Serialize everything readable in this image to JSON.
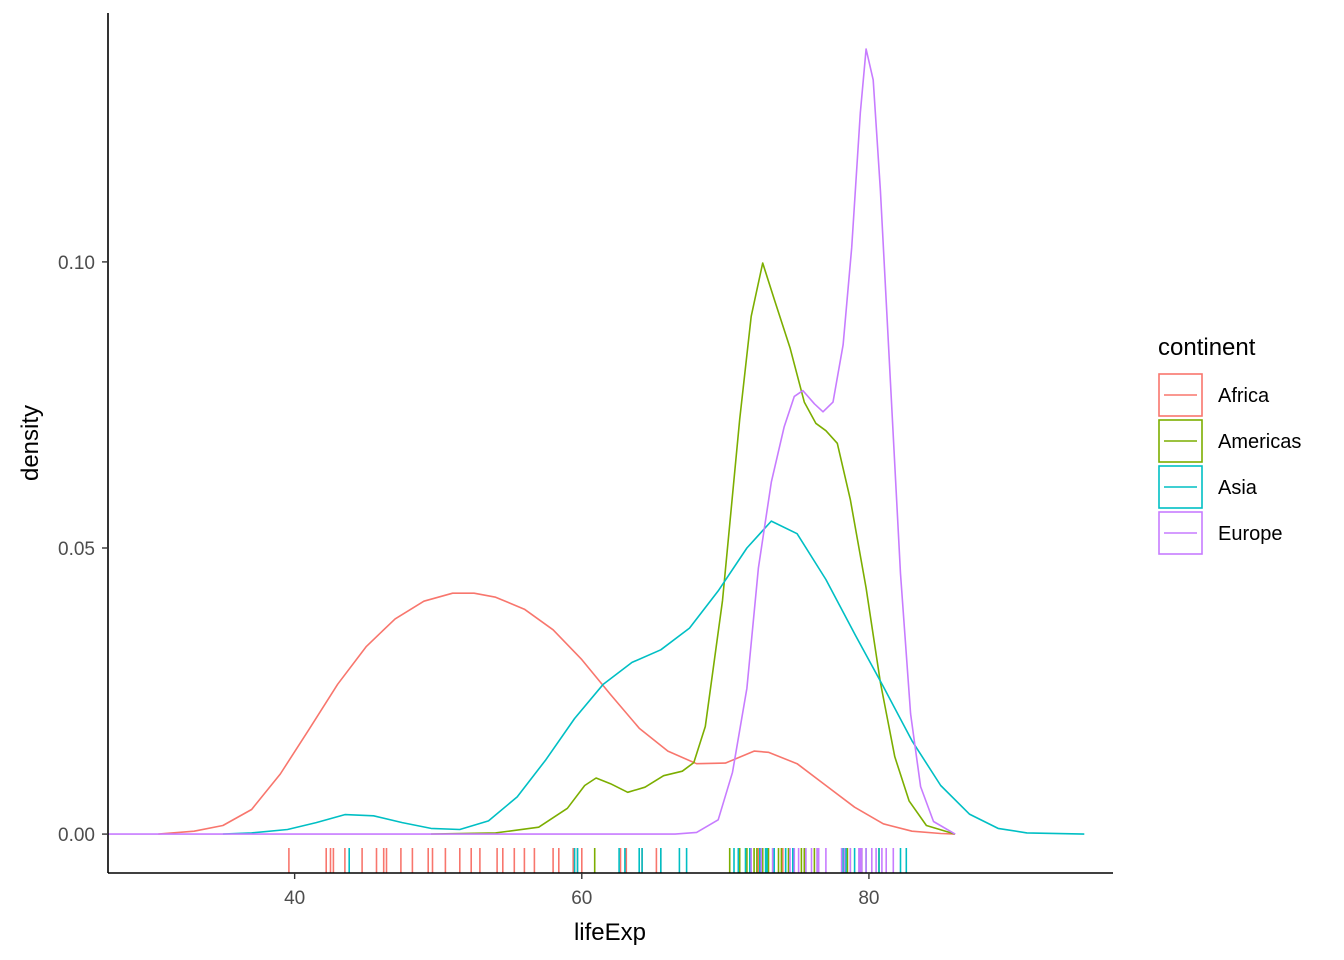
{
  "chart_data": {
    "type": "line",
    "subtype": "density with rug",
    "title": "",
    "xlabel": "lifeExp",
    "ylabel": "density",
    "xlim": [
      27,
      97
    ],
    "ylim": [
      -0.0068,
      0.1435
    ],
    "x_ticks": [
      40,
      60,
      80
    ],
    "y_ticks": [
      0.0,
      0.05,
      0.1
    ],
    "y_tick_labels": [
      "0.00",
      "0.05",
      "0.10"
    ],
    "grid": false,
    "legend": {
      "title": "continent",
      "position": "right"
    },
    "series": [
      {
        "name": "Africa",
        "color": "#F8766D",
        "points": [
          [
            30.5,
            0
          ],
          [
            33,
            0.0005
          ],
          [
            35,
            0.0015
          ],
          [
            37,
            0.0043
          ],
          [
            39,
            0.0105
          ],
          [
            41,
            0.0183
          ],
          [
            43,
            0.0262
          ],
          [
            45,
            0.0328
          ],
          [
            47,
            0.0376
          ],
          [
            49,
            0.0407
          ],
          [
            51,
            0.0421
          ],
          [
            52.5,
            0.0421
          ],
          [
            54,
            0.0414
          ],
          [
            56,
            0.0393
          ],
          [
            58,
            0.0357
          ],
          [
            60,
            0.0305
          ],
          [
            62,
            0.0244
          ],
          [
            64,
            0.0185
          ],
          [
            66,
            0.0145
          ],
          [
            68,
            0.0123
          ],
          [
            70,
            0.0124
          ],
          [
            72,
            0.0145
          ],
          [
            73,
            0.0143
          ],
          [
            75,
            0.0123
          ],
          [
            77,
            0.0085
          ],
          [
            79,
            0.0047
          ],
          [
            81,
            0.0018
          ],
          [
            83,
            0.0005
          ],
          [
            85,
            0.0001
          ],
          [
            86,
            0
          ]
        ],
        "rug": [
          39.6,
          42.2,
          42.5,
          42.7,
          43.5,
          44.7,
          45.7,
          46.2,
          46.4,
          47.4,
          48.2,
          49.3,
          49.6,
          50.5,
          51.5,
          52.3,
          52.9,
          54.1,
          54.5,
          55.3,
          56.0,
          56.7,
          58.0,
          58.4,
          59.4,
          59.7,
          60.0,
          62.7,
          63.1,
          64.2,
          65.2,
          65.5,
          72.3,
          73.0,
          74.0,
          76.4
        ]
      },
      {
        "name": "Americas",
        "color": "#7CAE00",
        "points": [
          [
            49.5,
            0
          ],
          [
            54,
            0.0002
          ],
          [
            57,
            0.0012
          ],
          [
            59,
            0.0045
          ],
          [
            60.2,
            0.0085
          ],
          [
            61,
            0.0098
          ],
          [
            62,
            0.0088
          ],
          [
            63.2,
            0.0073
          ],
          [
            64.4,
            0.0082
          ],
          [
            65.7,
            0.0102
          ],
          [
            67,
            0.011
          ],
          [
            67.8,
            0.0125
          ],
          [
            68.6,
            0.0188
          ],
          [
            69.8,
            0.0408
          ],
          [
            71,
            0.0725
          ],
          [
            71.8,
            0.0905
          ],
          [
            72.6,
            0.0998
          ],
          [
            73.4,
            0.0935
          ],
          [
            74.5,
            0.085
          ],
          [
            75.5,
            0.0755
          ],
          [
            76.3,
            0.0718
          ],
          [
            77,
            0.0705
          ],
          [
            77.8,
            0.0683
          ],
          [
            78.7,
            0.0585
          ],
          [
            79.8,
            0.043
          ],
          [
            80.8,
            0.0265
          ],
          [
            81.8,
            0.0135
          ],
          [
            82.8,
            0.0058
          ],
          [
            84,
            0.0015
          ],
          [
            86,
            0
          ]
        ],
        "rug": [
          60.9,
          70.3,
          71.0,
          71.5,
          71.8,
          72.0,
          72.2,
          72.4,
          72.6,
          72.9,
          73.0,
          73.3,
          73.7,
          73.9,
          74.4,
          74.7,
          75.3,
          75.5,
          76.2,
          76.5,
          78.3,
          78.5,
          78.7,
          79.5,
          80.7
        ]
      },
      {
        "name": "Asia",
        "color": "#00BFC4",
        "points": [
          [
            35,
            0
          ],
          [
            37,
            0.0002
          ],
          [
            39.5,
            0.0008
          ],
          [
            41.5,
            0.002
          ],
          [
            43.5,
            0.0034
          ],
          [
            45.5,
            0.0032
          ],
          [
            47.5,
            0.002
          ],
          [
            49.5,
            0.001
          ],
          [
            51.5,
            0.0008
          ],
          [
            53.5,
            0.0023
          ],
          [
            55.5,
            0.0065
          ],
          [
            57.5,
            0.013
          ],
          [
            59.5,
            0.0202
          ],
          [
            61.5,
            0.0262
          ],
          [
            63.5,
            0.03
          ],
          [
            65.5,
            0.0322
          ],
          [
            67.5,
            0.036
          ],
          [
            69.5,
            0.0425
          ],
          [
            71.5,
            0.05
          ],
          [
            73.2,
            0.0547
          ],
          [
            75,
            0.0525
          ],
          [
            77,
            0.0445
          ],
          [
            79,
            0.035
          ],
          [
            81,
            0.0258
          ],
          [
            83,
            0.0163
          ],
          [
            85,
            0.0085
          ],
          [
            87,
            0.0035
          ],
          [
            89,
            0.001
          ],
          [
            91,
            0.0002
          ],
          [
            95,
            0
          ]
        ],
        "rug": [
          43.8,
          59.5,
          59.7,
          62.6,
          63.0,
          64.0,
          64.2,
          65.5,
          66.8,
          67.3,
          70.6,
          70.9,
          71.4,
          71.7,
          72.4,
          72.8,
          72.9,
          73.4,
          74.2,
          74.2,
          74.7,
          75.6,
          76.4,
          78.2,
          78.4,
          79.0,
          79.4,
          79.8,
          80.7,
          82.2,
          82.6
        ]
      },
      {
        "name": "Europe",
        "color": "#C77CFF",
        "points": [
          [
            27,
            0
          ],
          [
            66.5,
            0
          ],
          [
            68,
            0.0003
          ],
          [
            69.5,
            0.0025
          ],
          [
            70.5,
            0.0108
          ],
          [
            71.5,
            0.0255
          ],
          [
            72.3,
            0.0465
          ],
          [
            73.2,
            0.0615
          ],
          [
            74.1,
            0.0712
          ],
          [
            74.8,
            0.0765
          ],
          [
            75.4,
            0.0775
          ],
          [
            76.2,
            0.0752
          ],
          [
            76.8,
            0.0738
          ],
          [
            77.5,
            0.0755
          ],
          [
            78.2,
            0.0855
          ],
          [
            78.8,
            0.1025
          ],
          [
            79.4,
            0.126
          ],
          [
            79.8,
            0.1372
          ],
          [
            80.3,
            0.1318
          ],
          [
            80.8,
            0.1125
          ],
          [
            81.5,
            0.0788
          ],
          [
            82.2,
            0.0455
          ],
          [
            82.9,
            0.021
          ],
          [
            83.6,
            0.0083
          ],
          [
            84.5,
            0.0022
          ],
          [
            86,
            0
          ]
        ],
        "rug": [
          71.8,
          72.5,
          73.3,
          74.5,
          74.8,
          75.1,
          75.6,
          76.0,
          76.4,
          76.5,
          77.0,
          78.1,
          78.3,
          78.7,
          79.3,
          79.4,
          79.5,
          79.8,
          80.2,
          80.5,
          80.9,
          81.2,
          81.7
        ]
      }
    ]
  }
}
